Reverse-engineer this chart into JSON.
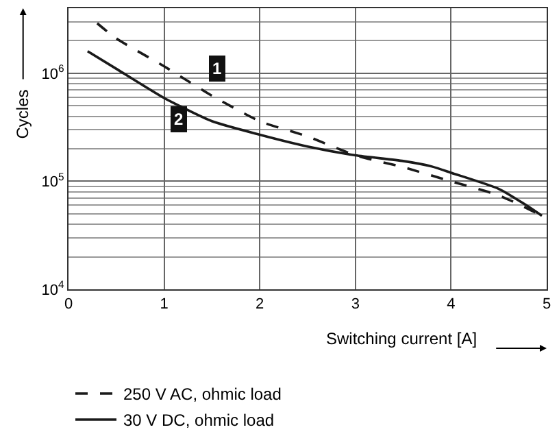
{
  "chart_data": {
    "type": "line",
    "xlabel": "Switching current [A]",
    "ylabel": "Cycles",
    "x": [
      0.2,
      0.5,
      1,
      1.5,
      2,
      2.5,
      3,
      3.5,
      3.8,
      4,
      4.5,
      4.8,
      4.95
    ],
    "series": [
      {
        "name": "250 V AC, ohmic load",
        "color": "#1a1a1a",
        "line_style": "dashed",
        "x": [
          0.3,
          0.5,
          1,
          1.5,
          2,
          2.5,
          3,
          3.5,
          4,
          4.5,
          4.95
        ],
        "values": [
          2900000,
          2100000,
          1160000,
          620000,
          360000,
          260000,
          174000,
          135000,
          100000,
          74000,
          48000
        ]
      },
      {
        "name": "30 V DC, ohmic load",
        "color": "#1a1a1a",
        "line_style": "solid",
        "values": [
          1600000,
          1100000,
          590000,
          360000,
          270000,
          210000,
          174000,
          154000,
          137000,
          120000,
          85000,
          59000,
          48000
        ]
      }
    ],
    "annotations": [
      {
        "text": "1",
        "x": 1.55,
        "y": 1100000
      },
      {
        "text": "2",
        "x": 1.15,
        "y": 380000
      }
    ],
    "xlim": [
      0,
      5
    ],
    "xticks": [
      0,
      1,
      2,
      3,
      4,
      5
    ],
    "ylim": [
      10000,
      4000000
    ],
    "yticks": [
      {
        "value": 10000,
        "label": "10$^{4}$"
      },
      {
        "value": 100000,
        "label": "10$^{5}$"
      },
      {
        "value": 1000000,
        "label": "10$^{6}$"
      }
    ],
    "log": "y",
    "grid": true,
    "legend": "bottom left",
    "marker": "none"
  }
}
